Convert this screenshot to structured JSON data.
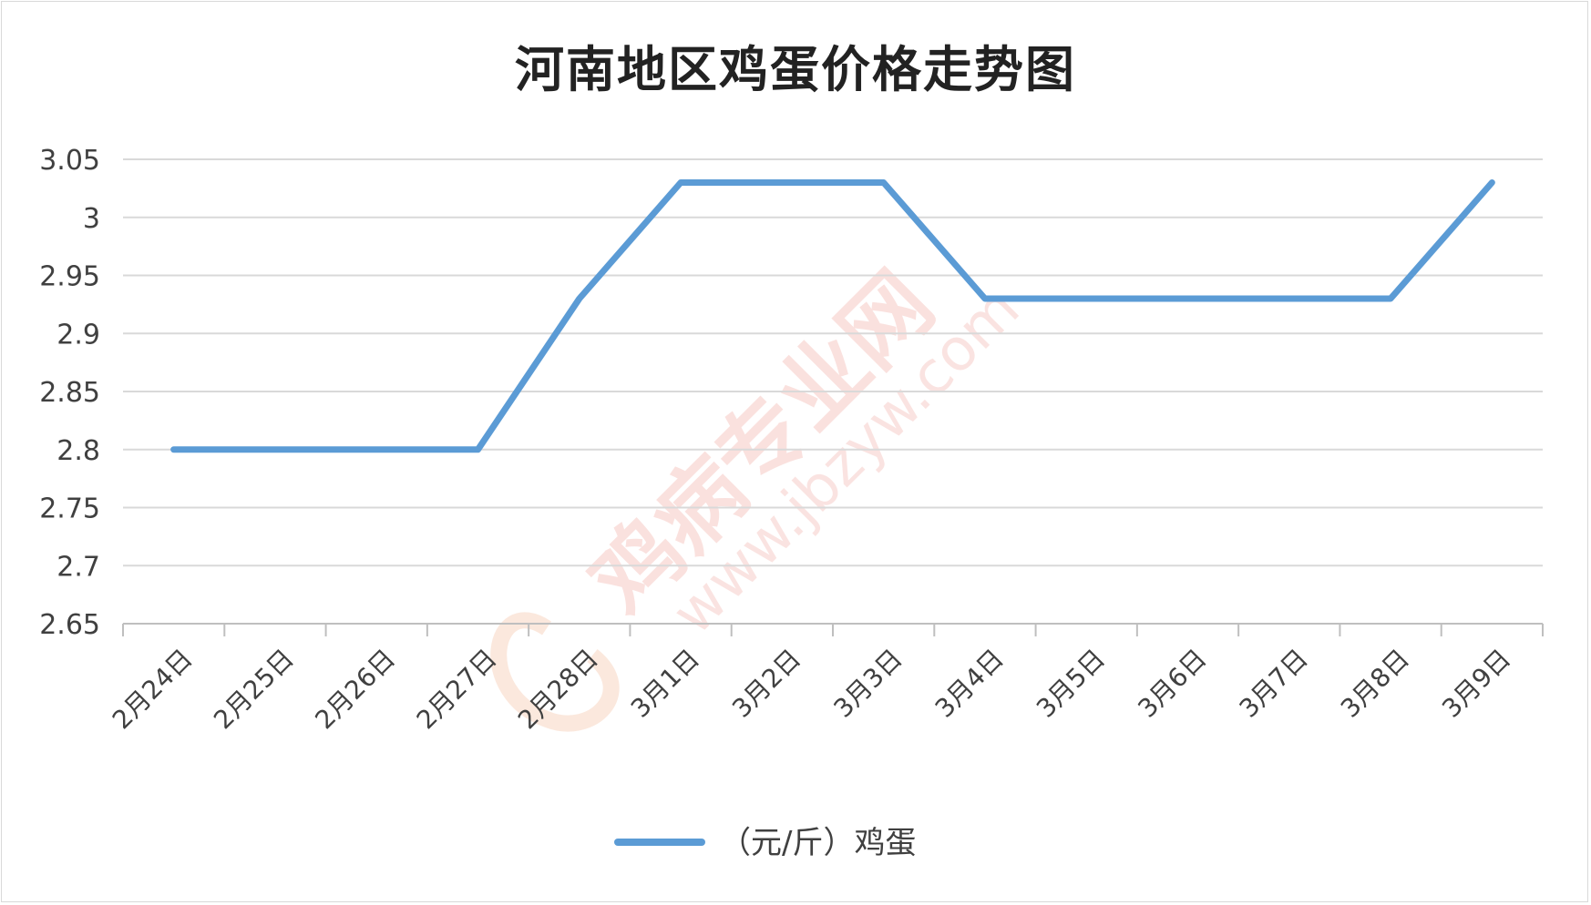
{
  "chart_data": {
    "type": "line",
    "title": "河南地区鸡蛋价格走势图",
    "categories": [
      "2月24日",
      "2月25日",
      "2月26日",
      "2月27日",
      "2月28日",
      "3月1日",
      "3月2日",
      "3月3日",
      "3月4日",
      "3月5日",
      "3月6日",
      "3月7日",
      "3月8日",
      "3月9日"
    ],
    "series": [
      {
        "name": "（元/斤）鸡蛋",
        "values": [
          2.8,
          2.8,
          2.8,
          2.8,
          2.93,
          3.03,
          3.03,
          3.03,
          2.93,
          2.93,
          2.93,
          2.93,
          2.93,
          3.03
        ],
        "color": "#5b9bd5"
      }
    ],
    "yticks": [
      "2.65",
      "2.7",
      "2.75",
      "2.8",
      "2.85",
      "2.9",
      "2.95",
      "3",
      "3.05"
    ],
    "ylim": [
      2.65,
      3.05
    ],
    "grid": true,
    "legend_position": "bottom",
    "watermark": {
      "name": "鸡病专业网",
      "url": "www.jbzyw.com"
    }
  }
}
